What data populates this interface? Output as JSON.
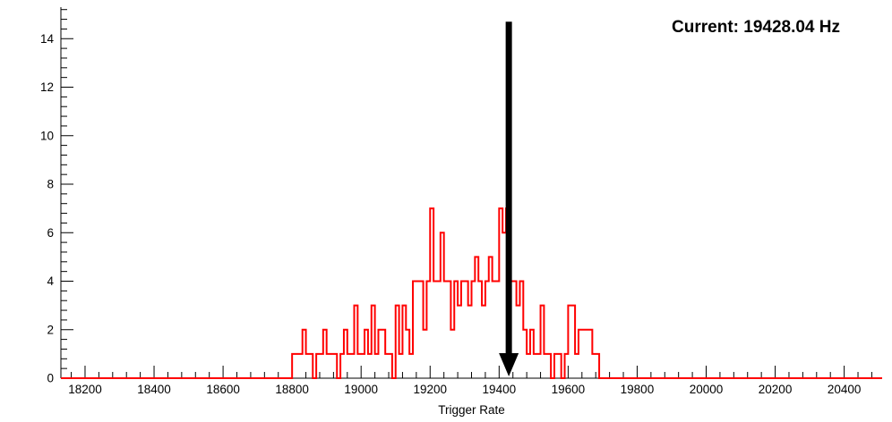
{
  "chart_data": {
    "type": "bar",
    "style": "step-histogram",
    "title": "",
    "xlabel": "Trigger Rate",
    "ylabel": "",
    "annotation": "Current: 19428.04 Hz",
    "axes": {
      "xlim": [
        18130,
        20510
      ],
      "ylim": [
        0,
        15.3
      ],
      "x_major_ticks": [
        18200,
        18400,
        18600,
        18800,
        19000,
        19200,
        19400,
        19600,
        19800,
        20000,
        20200,
        20400
      ],
      "x_minor_step": 40,
      "y_major_ticks": [
        0,
        2,
        4,
        6,
        8,
        10,
        12,
        14
      ],
      "y_minor_step": 0.4,
      "grid": false,
      "axis_color": "#000000"
    },
    "histogram": {
      "name": "trigger-rate-distribution",
      "first_bin": 18800,
      "bin_width": 10,
      "color": "#ff0000",
      "line_width": 2,
      "counts": [
        1,
        1,
        1,
        2,
        1,
        1,
        0,
        1,
        1,
        2,
        1,
        1,
        1,
        0,
        1,
        2,
        1,
        1,
        3,
        1,
        1,
        2,
        1,
        3,
        1,
        2,
        2,
        1,
        1,
        0,
        3,
        1,
        3,
        2,
        1,
        4,
        4,
        4,
        2,
        4,
        7,
        4,
        4,
        6,
        4,
        4,
        2,
        4,
        3,
        4,
        4,
        3,
        4,
        5,
        4,
        3,
        4,
        5,
        4,
        4,
        7,
        6,
        7,
        4,
        4,
        3,
        4,
        2,
        1,
        2,
        1,
        1,
        3,
        1,
        1,
        0,
        1,
        1,
        0,
        1,
        3,
        3,
        1,
        2,
        2,
        2,
        2,
        1,
        1,
        0
      ]
    },
    "marker_arrow": {
      "x": 19428.04,
      "y_top": 14.7,
      "y_bottom": 0,
      "color": "#000000"
    },
    "legend": "none"
  }
}
